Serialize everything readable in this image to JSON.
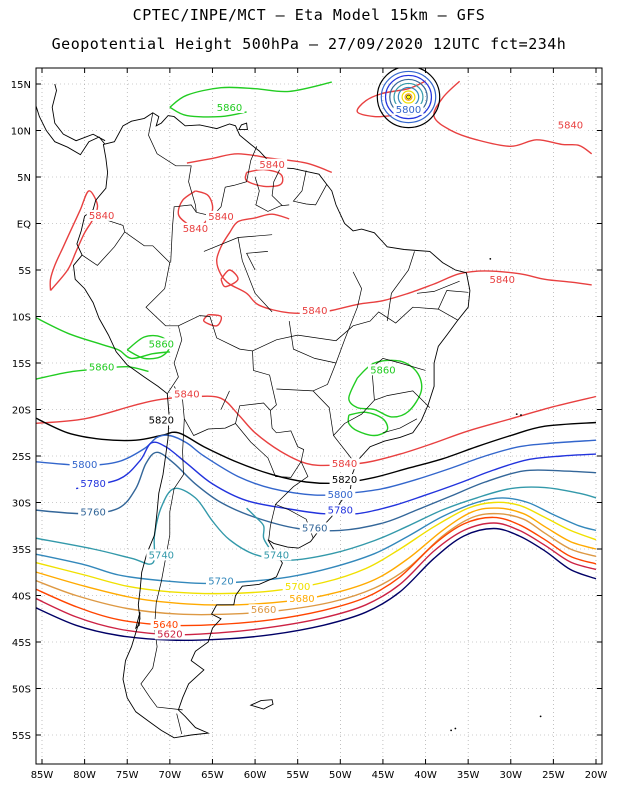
{
  "title": {
    "line1": "CPTEC/INPE/MCT –  Eta Model 15km – GFS",
    "line2": "Geopotential Height 500hPa – 27/09/2020 12UTC fct=234h"
  },
  "lat_labels": [
    "15N",
    "10N",
    "5N",
    "EQ",
    "5S",
    "10S",
    "15S",
    "20S",
    "25S",
    "30S",
    "35S",
    "40S",
    "45S",
    "50S",
    "55S"
  ],
  "lon_labels": [
    "85W",
    "80W",
    "75W",
    "70W",
    "65W",
    "60W",
    "55W",
    "50W",
    "45W",
    "40W",
    "35W",
    "30W",
    "25W",
    "20W"
  ],
  "colors": {
    "c5860": "#22cc22",
    "c5840": "#e84040",
    "c5820": "#000000",
    "c5800": "#3366cc",
    "c5780": "#2233dd",
    "c5760": "#336699",
    "c5740": "#3399aa",
    "c5720": "#3388bb",
    "c5700": "#f0e000",
    "c5680": "#ffaa00",
    "c5660": "#dd9944",
    "c5640": "#ff4400",
    "c5620": "#cc2244",
    "c5600": "#000066",
    "coast": "#000000"
  },
  "contour_labels": [
    {
      "text": "5860",
      "color": "c5860",
      "lon": -63,
      "lat": 12.2
    },
    {
      "text": "5800",
      "color": "c5800",
      "lon": -42,
      "lat": 12.0
    },
    {
      "text": "5840",
      "color": "c5840",
      "lon": -23,
      "lat": 10.3
    },
    {
      "text": "5840",
      "color": "c5840",
      "lon": -58,
      "lat": 6.1
    },
    {
      "text": "5840",
      "color": "c5840",
      "lon": -78,
      "lat": 0.6
    },
    {
      "text": "5840",
      "color": "c5840",
      "lon": -64,
      "lat": 0.5
    },
    {
      "text": "5840",
      "color": "c5840",
      "lon": -67,
      "lat": -0.8
    },
    {
      "text": "5840",
      "color": "c5840",
      "lon": -31,
      "lat": -6.3
    },
    {
      "text": "5840",
      "color": "c5840",
      "lon": -53,
      "lat": -9.6
    },
    {
      "text": "5860",
      "color": "c5860",
      "lon": -71,
      "lat": -13.2
    },
    {
      "text": "5860",
      "color": "c5860",
      "lon": -78,
      "lat": -15.7
    },
    {
      "text": "5860",
      "color": "c5860",
      "lon": -45,
      "lat": -16.0
    },
    {
      "text": "5840",
      "color": "c5840",
      "lon": -68,
      "lat": -18.6
    },
    {
      "text": "5820",
      "color": "c5820",
      "lon": -71,
      "lat": -21.4
    },
    {
      "text": "5800",
      "color": "c5800",
      "lon": -80,
      "lat": -26.2
    },
    {
      "text": "5840",
      "color": "c5840",
      "lon": -49.5,
      "lat": -26.1
    },
    {
      "text": "5820",
      "color": "c5820",
      "lon": -49.5,
      "lat": -27.8
    },
    {
      "text": "5780",
      "color": "c5780",
      "lon": -79,
      "lat": -28.2
    },
    {
      "text": "5800",
      "color": "c5800",
      "lon": -50,
      "lat": -29.4
    },
    {
      "text": "5780",
      "color": "c5780",
      "lon": -50,
      "lat": -31.1
    },
    {
      "text": "5760",
      "color": "c5760",
      "lon": -79,
      "lat": -31.3
    },
    {
      "text": "5760",
      "color": "c5760",
      "lon": -53,
      "lat": -33.0
    },
    {
      "text": "5740",
      "color": "c5740",
      "lon": -71,
      "lat": -35.9
    },
    {
      "text": "5740",
      "color": "c5740",
      "lon": -57.5,
      "lat": -35.9
    },
    {
      "text": "5720",
      "color": "c5720",
      "lon": -64,
      "lat": -38.7
    },
    {
      "text": "5700",
      "color": "c5700",
      "lon": -55,
      "lat": -39.3
    },
    {
      "text": "5680",
      "color": "c5680",
      "lon": -54.5,
      "lat": -40.6
    },
    {
      "text": "5660",
      "color": "c5660",
      "lon": -59,
      "lat": -41.8
    },
    {
      "text": "5640",
      "color": "c5640",
      "lon": -70.5,
      "lat": -43.4
    },
    {
      "text": "5620",
      "color": "c5620",
      "lon": -70,
      "lat": -44.4
    }
  ]
}
